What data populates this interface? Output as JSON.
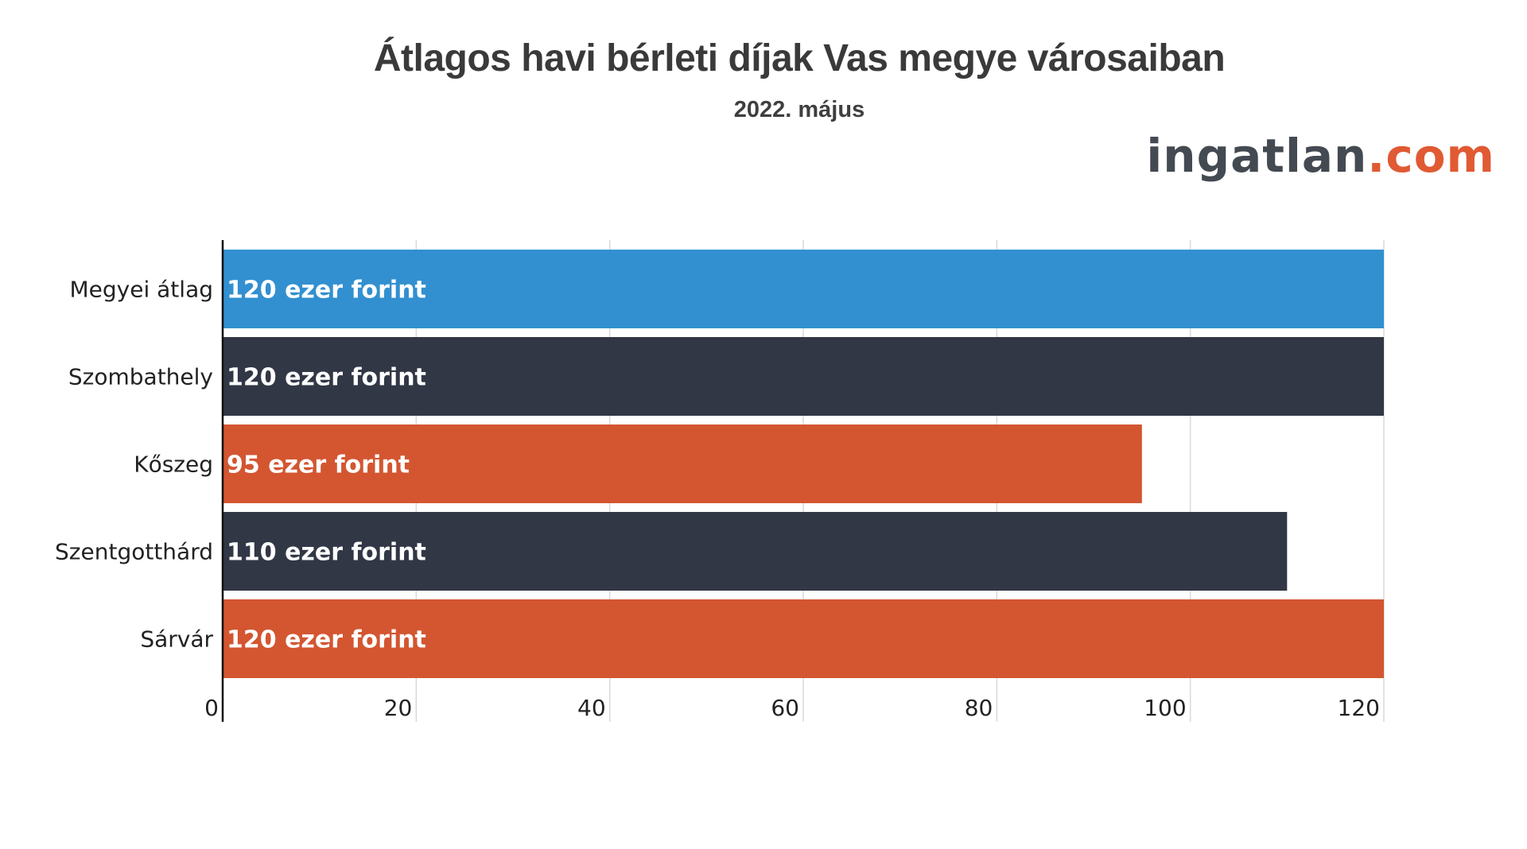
{
  "header": {
    "title": "Átlagos havi bérleti díjak Vas megye városaiban",
    "subtitle": "2022. május"
  },
  "logo": {
    "main": "ingatlan",
    "dot": ".",
    "tld": "com"
  },
  "colors": {
    "blue": "#3290d0",
    "navy": "#323746",
    "orange": "#d35631",
    "grid": "#d9d9d9",
    "axis": "#111111"
  },
  "chart_data": {
    "type": "bar",
    "orientation": "horizontal",
    "title": "Átlagos havi bérleti díjak Vas megye városaiban",
    "subtitle": "2022. május",
    "xlabel": "",
    "ylabel": "",
    "xlim": [
      0,
      120
    ],
    "xticks": [
      0,
      20,
      40,
      60,
      80,
      100,
      120
    ],
    "grid": "vertical",
    "legend": "none",
    "categories": [
      "Megyei átlag",
      "Szombathely",
      "Kőszeg",
      "Szentgotthárd",
      "Sárvár"
    ],
    "values": [
      120,
      120,
      95,
      110,
      120
    ],
    "data_labels": [
      "120 ezer forint",
      "120 ezer forint",
      "95 ezer forint",
      "110 ezer forint",
      "120 ezer forint"
    ],
    "bar_colors": [
      "#3290d0",
      "#323746",
      "#d35631",
      "#323746",
      "#d35631"
    ]
  }
}
